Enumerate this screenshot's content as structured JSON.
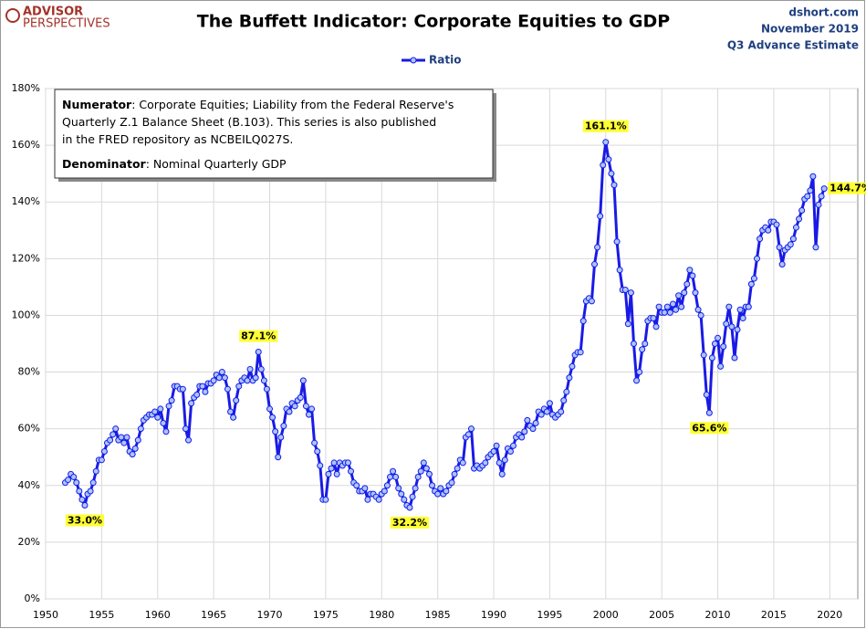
{
  "chart_data": {
    "type": "line",
    "title": "The Buffett Indicator: Corporate Equities to GDP",
    "logo": {
      "line1": "ADVISOR",
      "line2": "PERSPECTIVES"
    },
    "source": "dshort.com",
    "date": "November 2019",
    "estimate": "Q3 Advance Estimate",
    "note": {
      "numerator_label": "Numerator",
      "numerator_lines": [
        ": Corporate Equities; Liability from the Federal Reserve's",
        "Quarterly Z.1 Balance Sheet (B.103). This series is also published",
        "in the FRED repository  as NCBEILQ027S."
      ],
      "denominator_label": "Denominator",
      "denominator_text": ": Nominal Quarterly GDP"
    },
    "legend": "top",
    "grid": true,
    "xlim": [
      1950,
      2022.5
    ],
    "xticks": [
      1950,
      1955,
      1960,
      1965,
      1970,
      1975,
      1980,
      1985,
      1990,
      1995,
      2000,
      2005,
      2010,
      2015,
      2020
    ],
    "ylim": [
      0,
      180
    ],
    "yticks": [
      {
        "value": 0,
        "label": "0%"
      },
      {
        "value": 20,
        "label": "20%"
      },
      {
        "value": 40,
        "label": "40%"
      },
      {
        "value": 60,
        "label": "60%"
      },
      {
        "value": 80,
        "label": "80%"
      },
      {
        "value": 100,
        "label": "100%"
      },
      {
        "value": 120,
        "label": "120%"
      },
      {
        "value": 140,
        "label": "140%"
      },
      {
        "value": 160,
        "label": "160%"
      },
      {
        "value": 180,
        "label": "180%"
      }
    ],
    "x": [
      1951.75,
      1952,
      1952.25,
      1952.5,
      1952.75,
      1953,
      1953.25,
      1953.5,
      1953.75,
      1954,
      1954.25,
      1954.5,
      1954.75,
      1955,
      1955.25,
      1955.5,
      1955.75,
      1956,
      1956.25,
      1956.5,
      1956.75,
      1957,
      1957.25,
      1957.5,
      1957.75,
      1958,
      1958.25,
      1958.5,
      1958.75,
      1959,
      1959.25,
      1959.5,
      1959.75,
      1960,
      1960.25,
      1960.5,
      1960.75,
      1961,
      1961.25,
      1961.5,
      1961.75,
      1962,
      1962.25,
      1962.5,
      1962.75,
      1963,
      1963.25,
      1963.5,
      1963.75,
      1964,
      1964.25,
      1964.5,
      1964.75,
      1965,
      1965.25,
      1965.5,
      1965.75,
      1966,
      1966.25,
      1966.5,
      1966.75,
      1967,
      1967.25,
      1967.5,
      1967.75,
      1968,
      1968.25,
      1968.5,
      1968.75,
      1969,
      1969.25,
      1969.5,
      1969.75,
      1970,
      1970.25,
      1970.5,
      1970.75,
      1971,
      1971.25,
      1971.5,
      1971.75,
      1972,
      1972.25,
      1972.5,
      1972.75,
      1973,
      1973.25,
      1973.5,
      1973.75,
      1974,
      1974.25,
      1974.5,
      1974.75,
      1975,
      1975.25,
      1975.5,
      1975.75,
      1976,
      1976.25,
      1976.5,
      1976.75,
      1977,
      1977.25,
      1977.5,
      1977.75,
      1978,
      1978.25,
      1978.5,
      1978.75,
      1979,
      1979.25,
      1979.5,
      1979.75,
      1980,
      1980.25,
      1980.5,
      1980.75,
      1981,
      1981.25,
      1981.5,
      1981.75,
      1982,
      1982.25,
      1982.5,
      1982.75,
      1983,
      1983.25,
      1983.5,
      1983.75,
      1984,
      1984.25,
      1984.5,
      1984.75,
      1985,
      1985.25,
      1985.5,
      1985.75,
      1986,
      1986.25,
      1986.5,
      1986.75,
      1987,
      1987.25,
      1987.5,
      1987.75,
      1988,
      1988.25,
      1988.5,
      1988.75,
      1989,
      1989.25,
      1989.5,
      1989.75,
      1990,
      1990.25,
      1990.5,
      1990.75,
      1991,
      1991.25,
      1991.5,
      1991.75,
      1992,
      1992.25,
      1992.5,
      1992.75,
      1993,
      1993.25,
      1993.5,
      1993.75,
      1994,
      1994.25,
      1994.5,
      1994.75,
      1995,
      1995.25,
      1995.5,
      1995.75,
      1996,
      1996.25,
      1996.5,
      1996.75,
      1997,
      1997.25,
      1997.5,
      1997.75,
      1998,
      1998.25,
      1998.5,
      1998.75,
      1999,
      1999.25,
      1999.5,
      1999.75,
      2000,
      2000.25,
      2000.5,
      2000.75,
      2001,
      2001.25,
      2001.5,
      2001.75,
      2002,
      2002.25,
      2002.5,
      2002.75,
      2003,
      2003.25,
      2003.5,
      2003.75,
      2004,
      2004.25,
      2004.5,
      2004.75,
      2005,
      2005.25,
      2005.5,
      2005.75,
      2006,
      2006.25,
      2006.5,
      2006.75,
      2007,
      2007.25,
      2007.5,
      2007.75,
      2008,
      2008.25,
      2008.5,
      2008.75,
      2009,
      2009.25,
      2009.5,
      2009.75,
      2010,
      2010.25,
      2010.5,
      2010.75,
      2011,
      2011.25,
      2011.5,
      2011.75,
      2012,
      2012.25,
      2012.5,
      2012.75,
      2013,
      2013.25,
      2013.5,
      2013.75,
      2014,
      2014.25,
      2014.5,
      2014.75,
      2015,
      2015.25,
      2015.5,
      2015.75,
      2016,
      2016.25,
      2016.5,
      2016.75,
      2017,
      2017.25,
      2017.5,
      2017.75,
      2018,
      2018.25,
      2018.5,
      2018.75,
      2019,
      2019.25,
      2019.5
    ],
    "series": [
      {
        "name": "Ratio",
        "color": "#1a1ae6",
        "marker_color": "#a9c6ff",
        "values": [
          41,
          42,
          44,
          43,
          41,
          38,
          35,
          33.0,
          37,
          38,
          41,
          45,
          49,
          49,
          52,
          55,
          56,
          58,
          60,
          56,
          57,
          55,
          57,
          52,
          51,
          53,
          56,
          60,
          63,
          64,
          65,
          65,
          66,
          64,
          67,
          62,
          59,
          68,
          70,
          75,
          75,
          74,
          74,
          60,
          56,
          69,
          71,
          72,
          75,
          75,
          73,
          76,
          76,
          77,
          79,
          78,
          80,
          78,
          74,
          66,
          64,
          70,
          75,
          77,
          78,
          77,
          81,
          77,
          78,
          87.1,
          81,
          77,
          74,
          67,
          64,
          59,
          50,
          57,
          61,
          67,
          66,
          69,
          68,
          70,
          71,
          77,
          68,
          65,
          67,
          55,
          52,
          47,
          35,
          35,
          44,
          46,
          48,
          44,
          48,
          47,
          48,
          48,
          45,
          41,
          40,
          38,
          38,
          39,
          35,
          37,
          37,
          36,
          35,
          37,
          38,
          40,
          43,
          45,
          43,
          39,
          37,
          35,
          33,
          32.2,
          36,
          39,
          43,
          45,
          48,
          46,
          44,
          40,
          38,
          37,
          39,
          37,
          38,
          40,
          41,
          44,
          46,
          49,
          48,
          57,
          58,
          60,
          46,
          47,
          46,
          47,
          48,
          50,
          51,
          52,
          54,
          48,
          44,
          49,
          53,
          52,
          54,
          57,
          58,
          57,
          59,
          63,
          61,
          60,
          62,
          66,
          65,
          67,
          66,
          69,
          65,
          64,
          65,
          66,
          70,
          73,
          78,
          82,
          86,
          87,
          87,
          98,
          105,
          106,
          105,
          118,
          124,
          135,
          153,
          161.1,
          155,
          150,
          146,
          126,
          116,
          109,
          109,
          97,
          108,
          90,
          77,
          80,
          88,
          90,
          98,
          99,
          99,
          96,
          103,
          101,
          101,
          103,
          101,
          104,
          102,
          107,
          103,
          108,
          111,
          116,
          114,
          108,
          102,
          100,
          86,
          72,
          65.6,
          85,
          90,
          92,
          82,
          89,
          97,
          103,
          96,
          85,
          95,
          102,
          99,
          103,
          103,
          111,
          113,
          120,
          127,
          130,
          131,
          130,
          133,
          133,
          132,
          124,
          118,
          123,
          124,
          125,
          127,
          131,
          134,
          137,
          141,
          142,
          144,
          149,
          124,
          139,
          142,
          144.7
        ]
      }
    ],
    "annotations": [
      {
        "text": "33.0%",
        "x": 1953.5,
        "y": 33.0,
        "anchor": "below"
      },
      {
        "text": "87.1%",
        "x": 1969,
        "y": 87.1,
        "anchor": "above"
      },
      {
        "text": "32.2%",
        "x": 1982.5,
        "y": 32.2,
        "anchor": "below"
      },
      {
        "text": "161.1%",
        "x": 2000,
        "y": 161.1,
        "anchor": "above"
      },
      {
        "text": "65.6%",
        "x": 2009.25,
        "y": 65.6,
        "anchor": "below"
      },
      {
        "text": "144.7%",
        "x": 2019.5,
        "y": 144.7,
        "anchor": "right"
      }
    ]
  }
}
